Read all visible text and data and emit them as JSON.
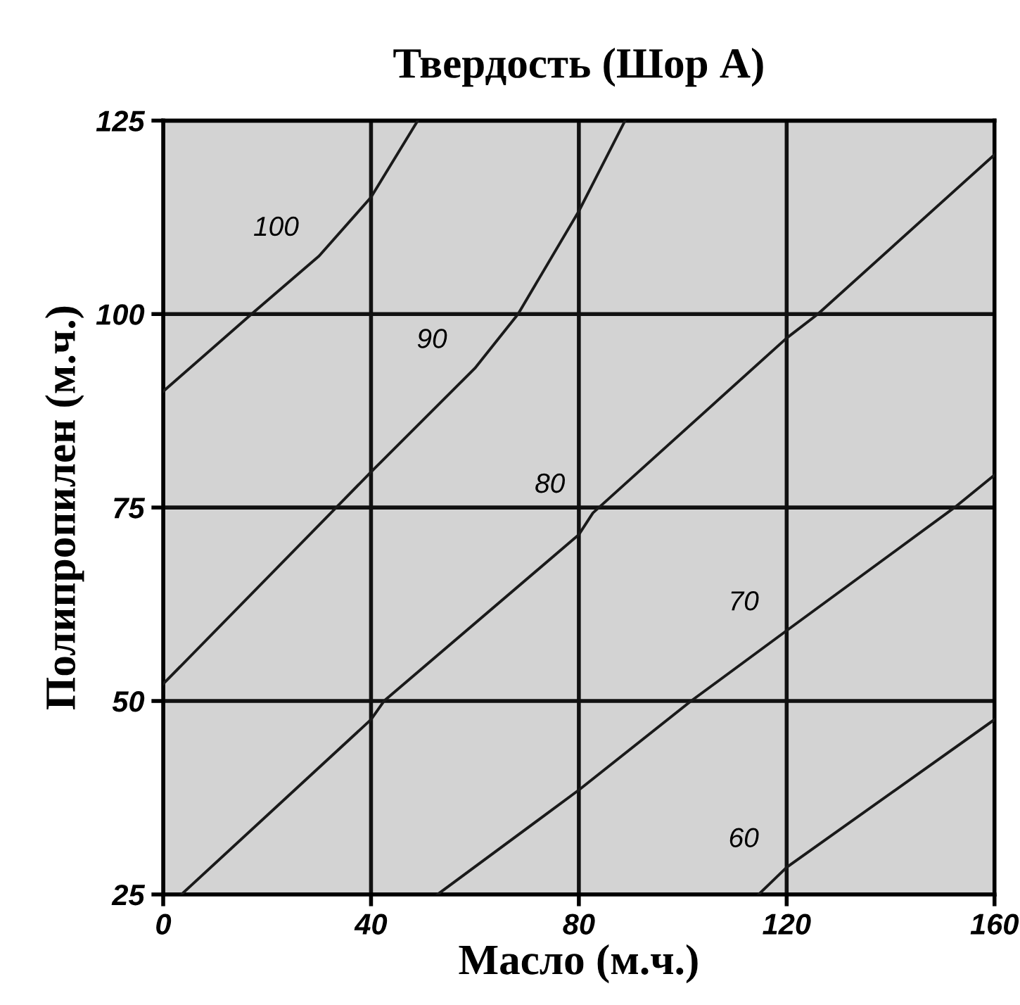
{
  "chart_data": {
    "type": "line",
    "title": "Твердость (Шор А)",
    "xlabel": "Масло (м.ч.)",
    "ylabel": "Полипропилен (м.ч.)",
    "xlim": [
      0,
      160
    ],
    "ylim": [
      25,
      125
    ],
    "xticks": [
      0,
      40,
      80,
      120,
      160
    ],
    "yticks": [
      25,
      50,
      75,
      100,
      125
    ],
    "grid": true,
    "legend": false,
    "marker": "none",
    "line_style": "solid",
    "series": [
      {
        "name": "100",
        "color": "#1a1a1a",
        "x": [
          0,
          17,
          30,
          40,
          49
        ],
        "values": [
          90,
          100,
          107.5,
          115.1,
          125
        ]
      },
      {
        "name": "90",
        "color": "#1a1a1a",
        "x": [
          0,
          33.3,
          40,
          60,
          68.3,
          80,
          88.9
        ],
        "values": [
          52.2,
          75,
          79.6,
          93,
          100,
          113.3,
          125
        ]
      },
      {
        "name": "80",
        "color": "#1a1a1a",
        "x": [
          3.5,
          40,
          42.5,
          80,
          82.7,
          120,
          126,
          160
        ],
        "values": [
          25,
          47.6,
          50,
          71.5,
          74.3,
          96.9,
          100,
          120.6
        ]
      },
      {
        "name": "70",
        "color": "#1a1a1a",
        "x": [
          52.8,
          80,
          101.6,
          120,
          152.3,
          160
        ],
        "values": [
          25,
          38.5,
          50,
          59.1,
          75,
          79.2
        ]
      },
      {
        "name": "60",
        "color": "#1a1a1a",
        "x": [
          114.6,
          120,
          160
        ],
        "values": [
          25,
          28.5,
          47.6
        ]
      }
    ]
  }
}
